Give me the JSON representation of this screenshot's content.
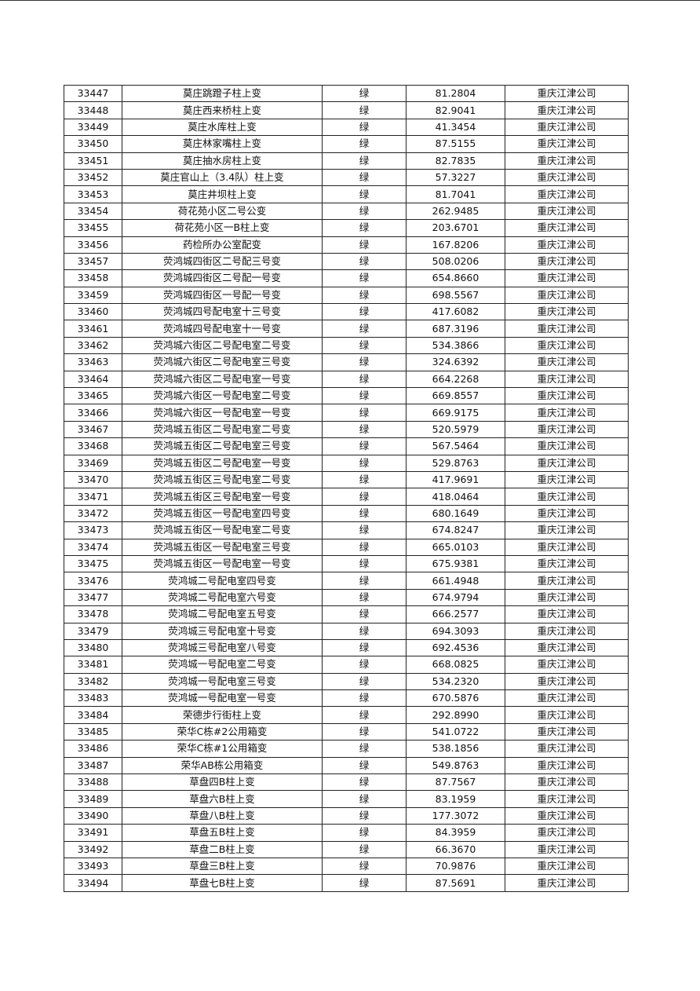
{
  "table": {
    "rows": [
      [
        "33447",
        "莫庄跳蹬子柱上变",
        "绿",
        "81.2804",
        "重庆江津公司"
      ],
      [
        "33448",
        "莫庄西来桥柱上变",
        "绿",
        "82.9041",
        "重庆江津公司"
      ],
      [
        "33449",
        "莫庄水库柱上变",
        "绿",
        "41.3454",
        "重庆江津公司"
      ],
      [
        "33450",
        "莫庄林家嘴柱上变",
        "绿",
        "87.5155",
        "重庆江津公司"
      ],
      [
        "33451",
        "莫庄抽水房柱上变",
        "绿",
        "82.7835",
        "重庆江津公司"
      ],
      [
        "33452",
        "莫庄官山上（3.4队）柱上变",
        "绿",
        "57.3227",
        "重庆江津公司"
      ],
      [
        "33453",
        "莫庄井坝柱上变",
        "绿",
        "81.7041",
        "重庆江津公司"
      ],
      [
        "33454",
        "荷花苑小区二号公变",
        "绿",
        "262.9485",
        "重庆江津公司"
      ],
      [
        "33455",
        "荷花苑小区一B柱上变",
        "绿",
        "203.6701",
        "重庆江津公司"
      ],
      [
        "33456",
        "药检所办公室配变",
        "绿",
        "167.8206",
        "重庆江津公司"
      ],
      [
        "33457",
        "荧鸿城四街区二号配三号变",
        "绿",
        "508.0206",
        "重庆江津公司"
      ],
      [
        "33458",
        "荧鸿城四街区二号配一号变",
        "绿",
        "654.8660",
        "重庆江津公司"
      ],
      [
        "33459",
        "荧鸿城四街区一号配一号变",
        "绿",
        "698.5567",
        "重庆江津公司"
      ],
      [
        "33460",
        "荧鸿城四号配电室十三号变",
        "绿",
        "417.6082",
        "重庆江津公司"
      ],
      [
        "33461",
        "荧鸿城四号配电室十一号变",
        "绿",
        "687.3196",
        "重庆江津公司"
      ],
      [
        "33462",
        "荧鸿城六街区二号配电室二号变",
        "绿",
        "534.3866",
        "重庆江津公司"
      ],
      [
        "33463",
        "荧鸿城六街区二号配电室三号变",
        "绿",
        "324.6392",
        "重庆江津公司"
      ],
      [
        "33464",
        "荧鸿城六街区二号配电室一号变",
        "绿",
        "664.2268",
        "重庆江津公司"
      ],
      [
        "33465",
        "荧鸿城六街区一号配电室二号变",
        "绿",
        "669.8557",
        "重庆江津公司"
      ],
      [
        "33466",
        "荧鸿城六街区一号配电室一号变",
        "绿",
        "669.9175",
        "重庆江津公司"
      ],
      [
        "33467",
        "荧鸿城五街区二号配电室二号变",
        "绿",
        "520.5979",
        "重庆江津公司"
      ],
      [
        "33468",
        "荧鸿城五街区二号配电室三号变",
        "绿",
        "567.5464",
        "重庆江津公司"
      ],
      [
        "33469",
        "荧鸿城五街区二号配电室一号变",
        "绿",
        "529.8763",
        "重庆江津公司"
      ],
      [
        "33470",
        "荧鸿城五街区三号配电室二号变",
        "绿",
        "417.9691",
        "重庆江津公司"
      ],
      [
        "33471",
        "荧鸿城五街区三号配电室一号变",
        "绿",
        "418.0464",
        "重庆江津公司"
      ],
      [
        "33472",
        "荧鸿城五街区一号配电室四号变",
        "绿",
        "680.1649",
        "重庆江津公司"
      ],
      [
        "33473",
        "荧鸿城五街区一号配电室二号变",
        "绿",
        "674.8247",
        "重庆江津公司"
      ],
      [
        "33474",
        "荧鸿城五街区一号配电室三号变",
        "绿",
        "665.0103",
        "重庆江津公司"
      ],
      [
        "33475",
        "荧鸿城五街区一号配电室一号变",
        "绿",
        "675.9381",
        "重庆江津公司"
      ],
      [
        "33476",
        "荧鸿城二号配电室四号变",
        "绿",
        "661.4948",
        "重庆江津公司"
      ],
      [
        "33477",
        "荧鸿城二号配电室六号变",
        "绿",
        "674.9794",
        "重庆江津公司"
      ],
      [
        "33478",
        "荧鸿城二号配电室五号变",
        "绿",
        "666.2577",
        "重庆江津公司"
      ],
      [
        "33479",
        "荧鸿城三号配电室十号变",
        "绿",
        "694.3093",
        "重庆江津公司"
      ],
      [
        "33480",
        "荧鸿城三号配电室八号变",
        "绿",
        "692.4536",
        "重庆江津公司"
      ],
      [
        "33481",
        "荧鸿城一号配电室二号变",
        "绿",
        "668.0825",
        "重庆江津公司"
      ],
      [
        "33482",
        "荧鸿城一号配电室三号变",
        "绿",
        "534.2320",
        "重庆江津公司"
      ],
      [
        "33483",
        "荧鸿城一号配电室一号变",
        "绿",
        "670.5876",
        "重庆江津公司"
      ],
      [
        "33484",
        "荣德步行街柱上变",
        "绿",
        "292.8990",
        "重庆江津公司"
      ],
      [
        "33485",
        "荣华C栋#2公用箱变",
        "绿",
        "541.0722",
        "重庆江津公司"
      ],
      [
        "33486",
        "荣华C栋#1公用箱变",
        "绿",
        "538.1856",
        "重庆江津公司"
      ],
      [
        "33487",
        "荣华AB栋公用箱变",
        "绿",
        "549.8763",
        "重庆江津公司"
      ],
      [
        "33488",
        "草盘四B柱上变",
        "绿",
        "87.7567",
        "重庆江津公司"
      ],
      [
        "33489",
        "草盘六B柱上变",
        "绿",
        "83.1959",
        "重庆江津公司"
      ],
      [
        "33490",
        "草盘八B柱上变",
        "绿",
        "177.3072",
        "重庆江津公司"
      ],
      [
        "33491",
        "草盘五B柱上变",
        "绿",
        "84.3959",
        "重庆江津公司"
      ],
      [
        "33492",
        "草盘二B柱上变",
        "绿",
        "66.3670",
        "重庆江津公司"
      ],
      [
        "33493",
        "草盘三B柱上变",
        "绿",
        "70.9876",
        "重庆江津公司"
      ],
      [
        "33494",
        "草盘七B柱上变",
        "绿",
        "87.5691",
        "重庆江津公司"
      ]
    ]
  }
}
